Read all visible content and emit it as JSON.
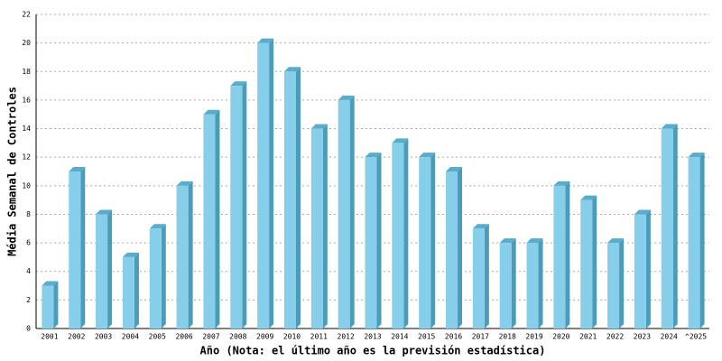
{
  "chart_data": {
    "type": "bar",
    "x_label": "Año (Nota: el último año es la previsión estadística)",
    "y_label": "Média Semanal de Controles",
    "categories": [
      "2001",
      "2002",
      "2003",
      "2004",
      "2005",
      "2006",
      "2007",
      "2008",
      "2009",
      "2010",
      "2011",
      "2012",
      "2013",
      "2014",
      "2015",
      "2016",
      "2017",
      "2018",
      "2019",
      "2020",
      "2021",
      "2022",
      "2023",
      "2024",
      "^2025"
    ],
    "values": [
      3,
      11,
      8,
      5,
      7,
      10,
      15,
      17,
      20,
      18,
      14,
      16,
      12,
      13,
      12,
      11,
      7,
      6,
      6,
      10,
      9,
      6,
      8,
      14,
      12
    ],
    "color": "#87ceeb",
    "ylim": [
      0,
      22
    ],
    "yticks": [
      0,
      2,
      4,
      6,
      8,
      10,
      12,
      14,
      16,
      18,
      20,
      22
    ],
    "grid": true
  }
}
